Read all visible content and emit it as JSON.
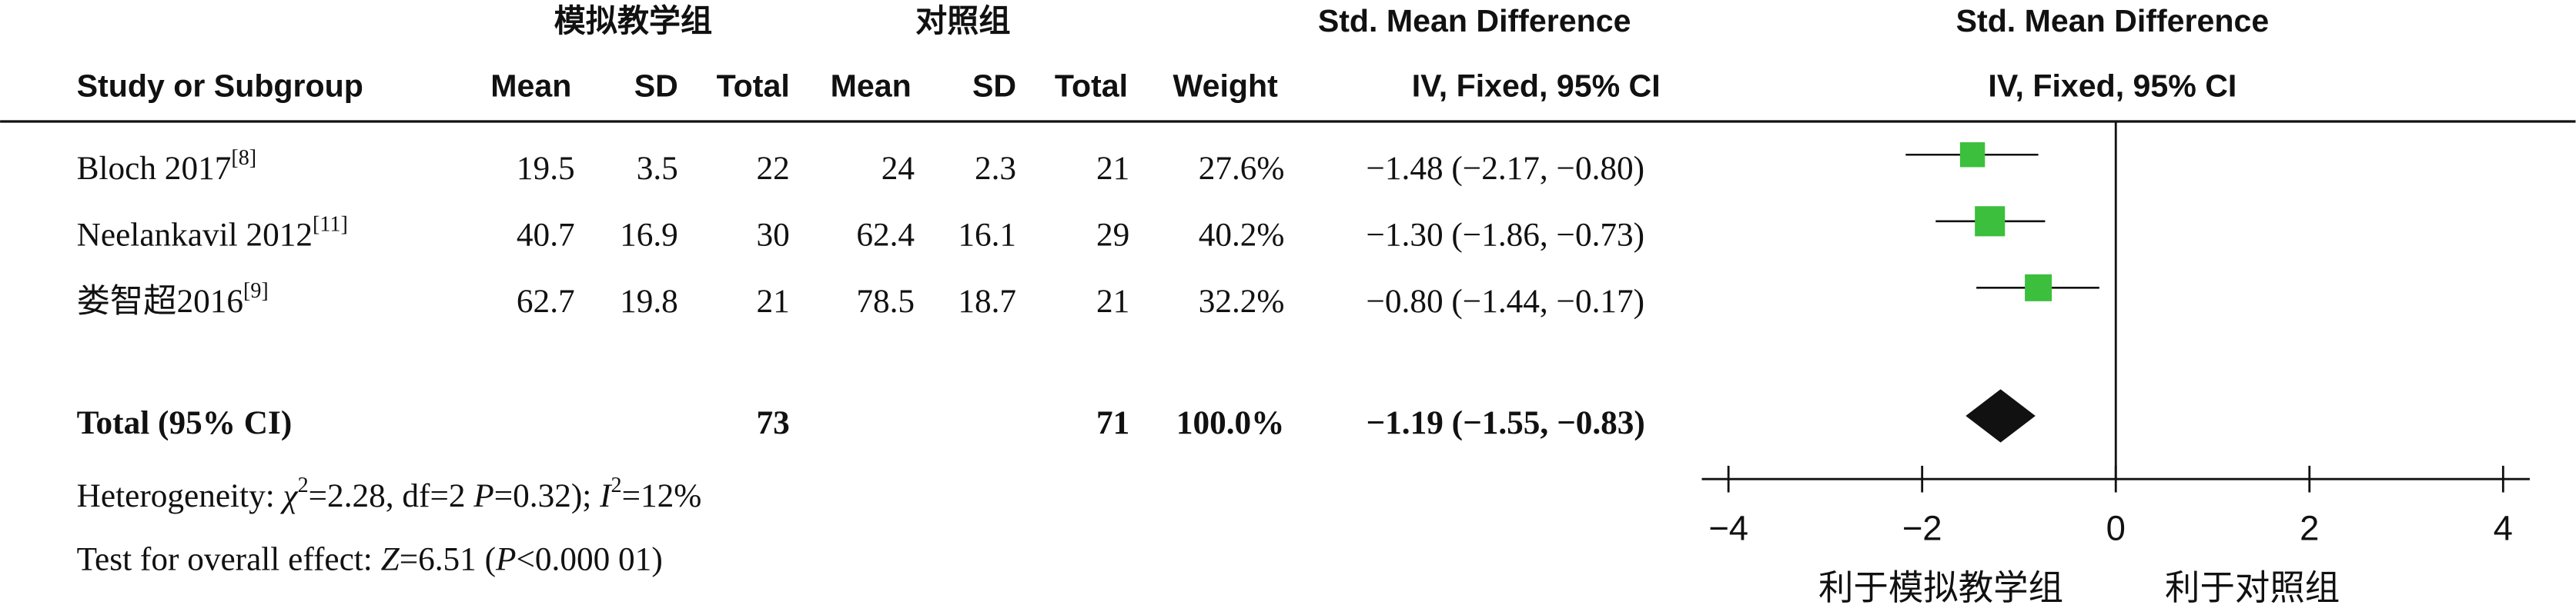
{
  "chart_data": {
    "type": "forest",
    "group_headers": [
      "模拟教学组",
      "对照组"
    ],
    "effect_title": "Std. Mean Difference",
    "effect_method": "IV, Fixed, 95% CI",
    "columns": [
      "Study or Subgroup",
      "Mean",
      "SD",
      "Total",
      "Mean",
      "SD",
      "Total",
      "Weight"
    ],
    "studies": [
      {
        "name": "Bloch 2017",
        "ref": "[8]",
        "experimental": {
          "mean": 19.5,
          "sd": 3.5,
          "total": 22
        },
        "control": {
          "mean": 24,
          "sd": 2.3,
          "total": 21
        },
        "weight": 27.6,
        "weight_label": "27.6%",
        "smd": -1.48,
        "ci_low": -2.17,
        "ci_high": -0.8,
        "ci_label": "−1.48 (−2.17, −0.80)"
      },
      {
        "name": "Neelankavil 2012",
        "ref": "[11]",
        "experimental": {
          "mean": 40.7,
          "sd": 16.9,
          "total": 30
        },
        "control": {
          "mean": 62.4,
          "sd": 16.1,
          "total": 29
        },
        "weight": 40.2,
        "weight_label": "40.2%",
        "smd": -1.3,
        "ci_low": -1.86,
        "ci_high": -0.73,
        "ci_label": "−1.30 (−1.86, −0.73)"
      },
      {
        "name": "娄智超2016",
        "ref": "[9]",
        "experimental": {
          "mean": 62.7,
          "sd": 19.8,
          "total": 21
        },
        "control": {
          "mean": 78.5,
          "sd": 18.7,
          "total": 21
        },
        "weight": 32.2,
        "weight_label": "32.2%",
        "smd": -0.8,
        "ci_low": -1.44,
        "ci_high": -0.17,
        "ci_label": "−0.80 (−1.44, −0.17)"
      }
    ],
    "total": {
      "name": "Total (95% CI)",
      "experimental_total": 73,
      "control_total": 71,
      "weight": 100,
      "weight_label": "100.0%",
      "smd": -1.19,
      "ci_low": -1.55,
      "ci_high": -0.83,
      "ci_label": "−1.19 (−1.55, −0.83)"
    },
    "heterogeneity": [
      "Heterogeneity: ",
      "χ",
      "2",
      "=2.28, df=2 ",
      "P",
      "=0.32); ",
      "I",
      "2",
      "=12%"
    ],
    "overall_effect": [
      "Test for overall effect: ",
      "Z",
      "=6.51 (",
      "P",
      "<0.000 01)"
    ],
    "xlim": [
      -4,
      4
    ],
    "xticks": [
      {
        "value": -4,
        "label": "−4"
      },
      {
        "value": -2,
        "label": "−2"
      },
      0,
      2,
      4
    ],
    "x_labels": [
      "利于模拟教学组",
      "利于对照组"
    ],
    "square_color": "#3cbf3c",
    "diamond_color": "#111111"
  }
}
